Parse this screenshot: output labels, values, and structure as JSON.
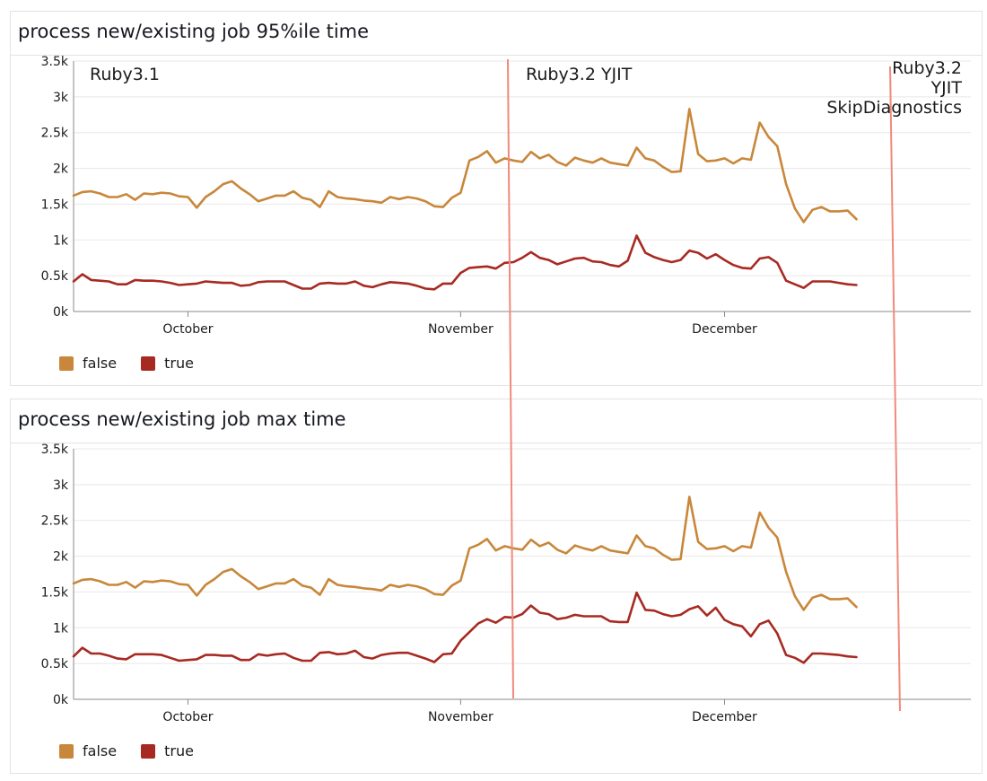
{
  "colors": {
    "false": "#c8873a",
    "true": "#a72a22",
    "grid": "#e8e8e8",
    "axis": "#8a8a8a",
    "marker": "#f08a7c"
  },
  "annotations": [
    {
      "lines": [
        "Ruby3.1"
      ]
    },
    {
      "lines": [
        "Ruby3.2 YJIT"
      ]
    },
    {
      "lines": [
        "Ruby3.2",
        "YJIT",
        "SkipDiagnostics"
      ]
    }
  ],
  "chart_data": [
    {
      "type": "line",
      "title": "process new/existing job 95%ile time",
      "ylim": [
        0,
        3500
      ],
      "yticks": [
        0,
        500,
        1000,
        1500,
        2000,
        2500,
        3000,
        3500
      ],
      "ytick_labels": [
        "0k",
        "0.5k",
        "1k",
        "1.5k",
        "2k",
        "2.5k",
        "3k",
        "3.5k"
      ],
      "xlim": [
        "2022-09-18",
        "2022-12-29"
      ],
      "xticks": [
        {
          "date": "2022-10-01",
          "label": "October"
        },
        {
          "date": "2022-11-01",
          "label": "November"
        },
        {
          "date": "2022-12-01",
          "label": "December"
        }
      ],
      "grid": true,
      "legend": "bottom-left",
      "start_date": "2022-09-18",
      "series": [
        {
          "name": "false",
          "values": [
            1620,
            1670,
            1680,
            1650,
            1600,
            1600,
            1640,
            1560,
            1650,
            1640,
            1660,
            1650,
            1610,
            1600,
            1450,
            1600,
            1680,
            1780,
            1820,
            1720,
            1640,
            1540,
            1580,
            1620,
            1620,
            1680,
            1590,
            1560,
            1460,
            1680,
            1600,
            1580,
            1570,
            1550,
            1540,
            1520,
            1600,
            1570,
            1600,
            1580,
            1540,
            1470,
            1460,
            1590,
            1660,
            2110,
            2160,
            2240,
            2080,
            2140,
            2110,
            2090,
            2230,
            2140,
            2190,
            2090,
            2040,
            2150,
            2110,
            2080,
            2140,
            2080,
            2060,
            2040,
            2290,
            2140,
            2110,
            2020,
            1950,
            1960,
            2830,
            2200,
            2100,
            2110,
            2140,
            2070,
            2140,
            2120,
            2640,
            2440,
            2310,
            1780,
            1440,
            1250,
            1420,
            1460,
            1400,
            1400,
            1410,
            1290
          ]
        },
        {
          "name": "true",
          "values": [
            420,
            520,
            440,
            430,
            420,
            380,
            380,
            440,
            430,
            430,
            420,
            400,
            370,
            380,
            390,
            420,
            410,
            400,
            400,
            360,
            370,
            410,
            420,
            420,
            420,
            370,
            320,
            320,
            390,
            400,
            390,
            390,
            420,
            360,
            340,
            380,
            410,
            400,
            390,
            360,
            320,
            310,
            390,
            390,
            540,
            610,
            620,
            630,
            600,
            680,
            690,
            750,
            830,
            750,
            720,
            660,
            700,
            740,
            750,
            700,
            690,
            650,
            630,
            710,
            1060,
            820,
            760,
            720,
            690,
            720,
            850,
            820,
            740,
            800,
            720,
            650,
            610,
            600,
            740,
            760,
            680,
            430,
            380,
            330,
            420,
            420,
            420,
            400,
            380,
            370
          ]
        }
      ]
    },
    {
      "type": "line",
      "title": "process new/existing job max time",
      "ylim": [
        0,
        3500
      ],
      "yticks": [
        0,
        500,
        1000,
        1500,
        2000,
        2500,
        3000,
        3500
      ],
      "ytick_labels": [
        "0k",
        "0.5k",
        "1k",
        "1.5k",
        "2k",
        "2.5k",
        "3k",
        "3.5k"
      ],
      "xlim": [
        "2022-09-18",
        "2022-12-29"
      ],
      "xticks": [
        {
          "date": "2022-10-01",
          "label": "October"
        },
        {
          "date": "2022-11-01",
          "label": "November"
        },
        {
          "date": "2022-12-01",
          "label": "December"
        }
      ],
      "grid": true,
      "legend": "bottom-left",
      "start_date": "2022-09-18",
      "series": [
        {
          "name": "false",
          "values": [
            1620,
            1670,
            1680,
            1650,
            1600,
            1600,
            1640,
            1560,
            1650,
            1640,
            1660,
            1650,
            1610,
            1600,
            1450,
            1600,
            1680,
            1780,
            1820,
            1720,
            1640,
            1540,
            1580,
            1620,
            1620,
            1680,
            1590,
            1560,
            1460,
            1680,
            1600,
            1580,
            1570,
            1550,
            1540,
            1520,
            1600,
            1570,
            1600,
            1580,
            1540,
            1470,
            1460,
            1590,
            1660,
            2110,
            2160,
            2240,
            2080,
            2140,
            2110,
            2090,
            2230,
            2140,
            2190,
            2090,
            2040,
            2150,
            2110,
            2080,
            2140,
            2080,
            2060,
            2040,
            2290,
            2140,
            2110,
            2020,
            1950,
            1960,
            2830,
            2200,
            2100,
            2110,
            2140,
            2070,
            2140,
            2120,
            2610,
            2400,
            2260,
            1780,
            1440,
            1250,
            1420,
            1460,
            1400,
            1400,
            1410,
            1290
          ]
        },
        {
          "name": "true",
          "values": [
            600,
            720,
            640,
            640,
            610,
            570,
            560,
            630,
            630,
            630,
            620,
            580,
            540,
            550,
            560,
            620,
            620,
            610,
            610,
            550,
            550,
            630,
            610,
            630,
            640,
            580,
            540,
            540,
            650,
            660,
            630,
            640,
            680,
            590,
            570,
            620,
            640,
            650,
            650,
            610,
            570,
            520,
            630,
            640,
            820,
            940,
            1060,
            1120,
            1070,
            1150,
            1140,
            1190,
            1310,
            1210,
            1190,
            1120,
            1140,
            1180,
            1160,
            1160,
            1160,
            1090,
            1080,
            1080,
            1490,
            1250,
            1240,
            1190,
            1160,
            1180,
            1260,
            1300,
            1170,
            1280,
            1110,
            1050,
            1020,
            880,
            1050,
            1100,
            920,
            620,
            580,
            510,
            640,
            640,
            630,
            620,
            600,
            590
          ]
        }
      ]
    }
  ]
}
